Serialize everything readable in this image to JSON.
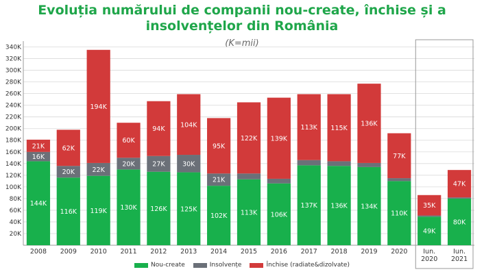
{
  "colors": {
    "title": "#1fa64a",
    "nou_create": "#18b04c",
    "insolvente": "#6b7078",
    "inchise": "#d23a3a",
    "grid": "#d9d9d9",
    "axis_text": "#333333",
    "label_text": "#ffffff"
  },
  "chart_data": {
    "type": "bar",
    "stacked": true,
    "title_line1": "Evoluția numărului de companii nou-create, închise și a",
    "title_line2": "insolvențelor din România",
    "subtitle": "(K=mii)",
    "categories": [
      "2008",
      "2009",
      "2010",
      "2011",
      "2012",
      "2013",
      "2014",
      "2015",
      "2016",
      "2017",
      "2018",
      "2019",
      "2020",
      "Iun. 2020",
      "Iun. 2021"
    ],
    "category_lines": [
      [
        "2008"
      ],
      [
        "2009"
      ],
      [
        "2010"
      ],
      [
        "2011"
      ],
      [
        "2012"
      ],
      [
        "2013"
      ],
      [
        "2014"
      ],
      [
        "2015"
      ],
      [
        "2016"
      ],
      [
        "2017"
      ],
      [
        "2018"
      ],
      [
        "2019"
      ],
      [
        "2020"
      ],
      [
        "Iun.",
        "2020"
      ],
      [
        "Iun.",
        "2021"
      ]
    ],
    "series": [
      {
        "name": "Nou-create",
        "values": [
          144,
          116,
          119,
          130,
          126,
          125,
          102,
          113,
          106,
          137,
          136,
          134,
          110,
          49,
          80
        ],
        "labels": [
          "144K",
          "116K",
          "119K",
          "130K",
          "126K",
          "125K",
          "102K",
          "113K",
          "106K",
          "137K",
          "136K",
          "134K",
          "110K",
          "49K",
          "80K"
        ]
      },
      {
        "name": "Insolvențe",
        "values": [
          16,
          20,
          22,
          20,
          27,
          30,
          21,
          10,
          8,
          9,
          8,
          7,
          5,
          2,
          2
        ],
        "labels": [
          "16K",
          "20K",
          "22K",
          "20K",
          "27K",
          "30K",
          "21K",
          "",
          "",
          "",
          "",
          "",
          "",
          "",
          ""
        ]
      },
      {
        "name": "Închise (radiate&dizolvate)",
        "values": [
          21,
          62,
          194,
          60,
          94,
          104,
          95,
          122,
          139,
          113,
          115,
          136,
          77,
          35,
          47
        ],
        "labels": [
          "21K",
          "62K",
          "194K",
          "60K",
          "94K",
          "104K",
          "95K",
          "122K",
          "139K",
          "113K",
          "115K",
          "136K",
          "77K",
          "35K",
          "47K"
        ]
      }
    ],
    "ylim": [
      0,
      350
    ],
    "yticks": [
      20,
      40,
      60,
      80,
      100,
      120,
      140,
      160,
      180,
      200,
      220,
      240,
      260,
      280,
      300,
      320,
      340
    ],
    "ytick_labels": [
      "20K",
      "40K",
      "60K",
      "80K",
      "100K",
      "120K",
      "140K",
      "160K",
      "180K",
      "200K",
      "220K",
      "240K",
      "260K",
      "280K",
      "300K",
      "320K",
      "340K"
    ],
    "grid": true,
    "legend_position": "bottom",
    "highlight_box_categories": [
      "Iun. 2020",
      "Iun. 2021"
    ]
  }
}
